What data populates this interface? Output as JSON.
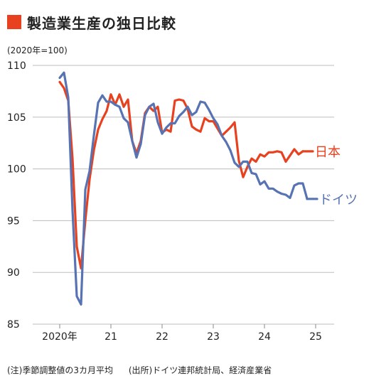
{
  "chart_data": {
    "type": "line",
    "title": "製造業生産の独日比較",
    "unit_label": "(2020年=100)",
    "ylim": [
      85,
      110
    ],
    "y_ticks": [
      85,
      90,
      95,
      100,
      105,
      110
    ],
    "x_tick_labels": [
      "2020年",
      "21",
      "22",
      "23",
      "24",
      "25"
    ],
    "grid": "horizontal",
    "start_month": "2020-01",
    "series": [
      {
        "name": "日本",
        "color": "#e8411f",
        "values": [
          108.4,
          107.8,
          106.6,
          101.0,
          92.5,
          90.4,
          95.0,
          99.0,
          101.8,
          103.8,
          104.8,
          105.6,
          107.2,
          106.2,
          107.2,
          106.0,
          106.7,
          102.7,
          101.5,
          102.7,
          105.4,
          106.0,
          105.6,
          106.0,
          103.5,
          103.8,
          103.6,
          106.6,
          106.7,
          106.6,
          105.8,
          104.1,
          103.8,
          103.6,
          104.9,
          104.6,
          104.6,
          103.9,
          103.2,
          103.6,
          104.0,
          104.5,
          100.8,
          99.2,
          100.2,
          101.0,
          100.7,
          101.4,
          101.2,
          101.6,
          101.6,
          101.7,
          101.6,
          100.7,
          101.3,
          101.9,
          101.4,
          101.7
        ]
      },
      {
        "name": "ドイツ",
        "color": "#5773b3",
        "values": [
          108.8,
          109.3,
          106.9,
          96.0,
          87.7,
          86.9,
          98.0,
          99.8,
          103.2,
          106.4,
          107.1,
          106.5,
          106.5,
          106.2,
          106.0,
          104.9,
          104.5,
          102.7,
          101.1,
          102.4,
          105.2,
          106.0,
          106.3,
          104.5,
          103.4,
          104.0,
          104.4,
          104.4,
          105.1,
          105.5,
          106.0,
          105.2,
          105.5,
          106.5,
          106.4,
          105.7,
          104.9,
          104.3,
          103.2,
          102.6,
          101.8,
          100.6,
          100.2,
          100.7,
          100.7,
          99.6,
          99.5,
          98.5,
          98.8,
          98.1,
          98.1,
          97.8,
          97.6,
          97.5,
          97.2,
          98.4,
          98.6,
          98.6,
          97.1
        ]
      }
    ]
  },
  "footer": {
    "note": "(注)季節調整値の3カ月平均",
    "source": "(出所)ドイツ連邦統計局、経済産業省"
  }
}
